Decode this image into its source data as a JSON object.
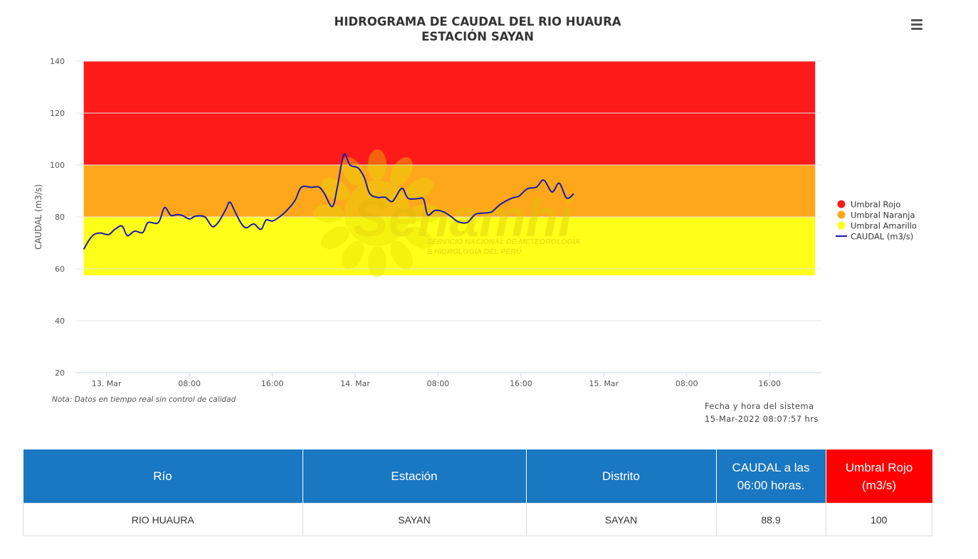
{
  "chart_data": {
    "type": "line",
    "title": "HIDROGRAMA DE CAUDAL DEL RIO HUAURA",
    "subtitle": "ESTACIÓN SAYAN",
    "xlabel": "",
    "ylabel": "CAUDAL (m3/s)",
    "ylim": [
      20,
      140
    ],
    "y_ticks": [
      20,
      40,
      60,
      80,
      100,
      120,
      140
    ],
    "x_unit": "hours since 12-Mar-2022 00:00",
    "xlim": [
      21,
      93
    ],
    "x_ticks": [
      {
        "x": 24,
        "label": "13. Mar"
      },
      {
        "x": 32,
        "label": "08:00"
      },
      {
        "x": 40,
        "label": "16:00"
      },
      {
        "x": 48,
        "label": "14. Mar"
      },
      {
        "x": 56,
        "label": "08:00"
      },
      {
        "x": 64,
        "label": "16:00"
      },
      {
        "x": 72,
        "label": "15. Mar"
      },
      {
        "x": 80,
        "label": "08:00"
      },
      {
        "x": 88,
        "label": "16:00"
      }
    ],
    "grid": true,
    "legend_position": "right",
    "bands": [
      {
        "name": "Umbral Rojo",
        "from": 100,
        "to": 140,
        "color": "#ff1a1a",
        "x_from": 21.8,
        "x_to": 92.4
      },
      {
        "name": "Umbral Naranja",
        "from": 80,
        "to": 100,
        "color": "#ffa71a",
        "x_from": 21.8,
        "x_to": 92.4
      },
      {
        "name": "Umbral Amarillo",
        "from": 57.5,
        "to": 80,
        "color": "#ffff1a",
        "x_from": 21.8,
        "x_to": 92.4
      }
    ],
    "series": [
      {
        "name": "CAUDAL (m3/s)",
        "color": "#1a1aaa",
        "points": [
          [
            21.8,
            67.5
          ],
          [
            22.3,
            71.0
          ],
          [
            22.8,
            73.2
          ],
          [
            23.4,
            73.8
          ],
          [
            24.2,
            73.2
          ],
          [
            24.8,
            75.2
          ],
          [
            25.5,
            76.5
          ],
          [
            26.0,
            72.8
          ],
          [
            26.7,
            74.5
          ],
          [
            27.5,
            74.0
          ],
          [
            28.0,
            77.8
          ],
          [
            29.0,
            77.8
          ],
          [
            29.6,
            83.6
          ],
          [
            30.2,
            80.6
          ],
          [
            30.8,
            80.9
          ],
          [
            31.3,
            80.6
          ],
          [
            32.0,
            79.2
          ],
          [
            32.6,
            80.3
          ],
          [
            33.5,
            80.0
          ],
          [
            34.2,
            76.3
          ],
          [
            34.8,
            78.0
          ],
          [
            35.5,
            82.8
          ],
          [
            35.9,
            85.7
          ],
          [
            36.4,
            82.0
          ],
          [
            37.0,
            77.5
          ],
          [
            37.5,
            75.8
          ],
          [
            38.2,
            77.3
          ],
          [
            38.9,
            75.2
          ],
          [
            39.4,
            78.8
          ],
          [
            40.0,
            78.4
          ],
          [
            40.7,
            80.0
          ],
          [
            41.4,
            82.5
          ],
          [
            42.2,
            86.4
          ],
          [
            42.8,
            91.4
          ],
          [
            43.8,
            91.4
          ],
          [
            44.5,
            91.5
          ],
          [
            45.0,
            89.2
          ],
          [
            45.8,
            84.0
          ],
          [
            46.3,
            92.0
          ],
          [
            46.9,
            104.0
          ],
          [
            47.5,
            100.0
          ],
          [
            48.3,
            98.8
          ],
          [
            48.9,
            95.0
          ],
          [
            49.4,
            89.0
          ],
          [
            50.2,
            87.5
          ],
          [
            50.9,
            87.6
          ],
          [
            51.6,
            86.0
          ],
          [
            52.5,
            91.0
          ],
          [
            53.1,
            87.2
          ],
          [
            54.0,
            87.0
          ],
          [
            54.6,
            86.8
          ],
          [
            55.0,
            80.8
          ],
          [
            55.7,
            82.5
          ],
          [
            56.5,
            82.0
          ],
          [
            57.3,
            80.0
          ],
          [
            57.9,
            78.2
          ],
          [
            58.8,
            77.8
          ],
          [
            59.6,
            81.0
          ],
          [
            60.5,
            81.5
          ],
          [
            61.2,
            82.0
          ],
          [
            62.0,
            84.8
          ],
          [
            63.1,
            87.2
          ],
          [
            63.8,
            88.0
          ],
          [
            64.6,
            90.8
          ],
          [
            65.5,
            91.5
          ],
          [
            66.2,
            94.2
          ],
          [
            67.0,
            89.6
          ],
          [
            67.7,
            93.0
          ],
          [
            68.4,
            87.3
          ],
          [
            69.1,
            88.9
          ]
        ]
      }
    ]
  },
  "watermark": {
    "logo_text": "Senamhi",
    "line1": "SERVICIO NACIONAL DE METEOROLOGÍA",
    "line2": "E HIDROLOGÍA DEL PERÚ"
  },
  "menu_icon": "hamburger-menu-icon",
  "note": "Nota: Datos en tiempo real sin control de calidad",
  "system_date": {
    "label": "Fecha y hora del sistema",
    "value": "15-Mar-2022 08:07:57 hrs"
  },
  "summary_table": {
    "headers": {
      "rio": "Río",
      "estacion": "Estación",
      "distrito": "Distrito",
      "caudal_line1": "CAUDAL a las",
      "caudal_line2": "06:00 horas.",
      "umbral_line1": "Umbral Rojo",
      "umbral_line2": "(m3/s)"
    },
    "row": {
      "rio": "RIO HUAURA",
      "estacion": "SAYAN",
      "distrito": "SAYAN",
      "caudal": "88.9",
      "umbral": "100"
    },
    "colors": {
      "header_bg": "#1a77c2",
      "umbral_bg": "#ff0000"
    }
  }
}
